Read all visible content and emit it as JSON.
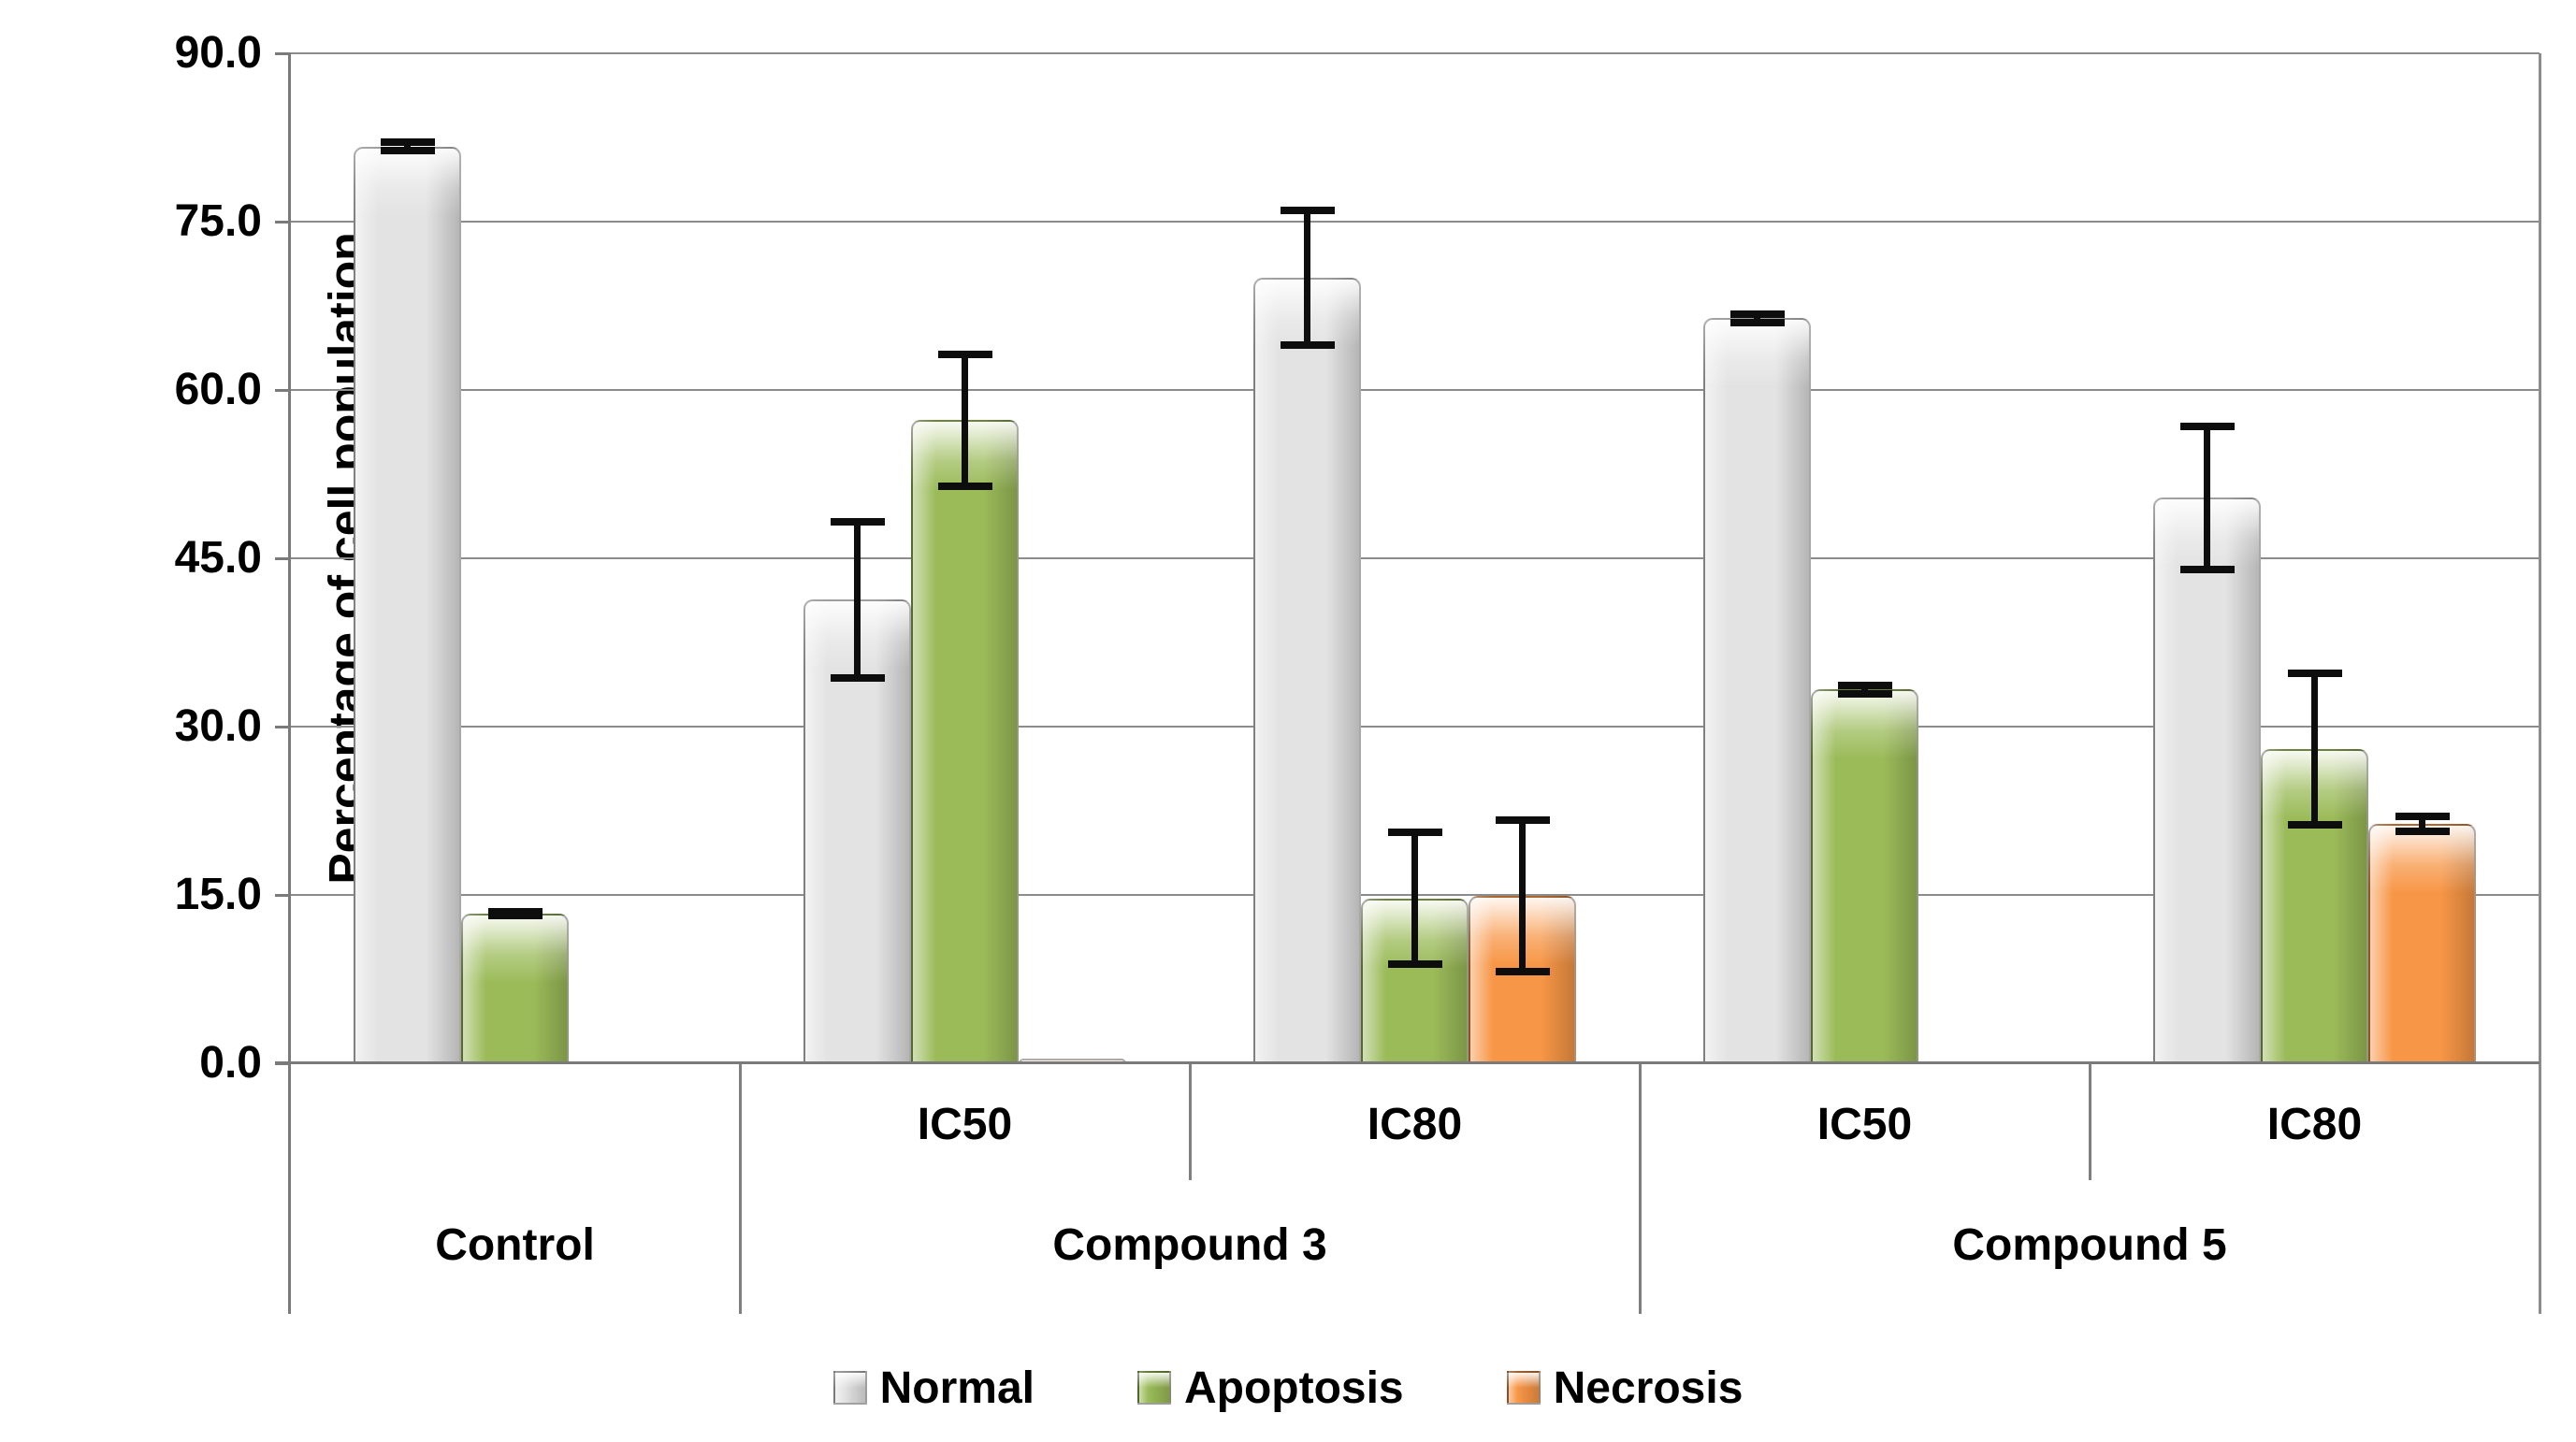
{
  "chart_data": {
    "type": "bar",
    "title": "",
    "ylabel": "Percentage of cell population",
    "xlabel": "",
    "ylim": [
      0,
      90
    ],
    "ytick_step": 15,
    "ytick_labels": [
      "90.0",
      "75.0",
      "60.0",
      "45.0",
      "30.0",
      "15.0",
      "0.0"
    ],
    "grid": true,
    "legend_position": "bottom",
    "series": [
      {
        "name": "Normal",
        "color": "#E3E3E3"
      },
      {
        "name": "Apoptosis",
        "color": "#9BBB59"
      },
      {
        "name": "Necrosis",
        "color": "#F79646"
      }
    ],
    "groups": [
      {
        "label": "Control",
        "subgroups": [
          {
            "label": "",
            "values": [
              {
                "series": "Normal",
                "value": 81.7,
                "error": 0.7
              },
              {
                "series": "Apoptosis",
                "value": 13.3,
                "error": 0.5
              },
              {
                "series": "Necrosis",
                "value": 0,
                "error": 0
              }
            ]
          }
        ]
      },
      {
        "label": "Compound 3",
        "subgroups": [
          {
            "label": "IC50",
            "values": [
              {
                "series": "Normal",
                "value": 41.3,
                "error": 7.3
              },
              {
                "series": "Apoptosis",
                "value": 57.3,
                "error": 6.2
              },
              {
                "series": "Necrosis",
                "value": 0.4,
                "error": 0
              }
            ]
          },
          {
            "label": "IC80",
            "values": [
              {
                "series": "Normal",
                "value": 70.0,
                "error": 6.3
              },
              {
                "series": "Apoptosis",
                "value": 14.7,
                "error": 6.2
              },
              {
                "series": "Necrosis",
                "value": 14.9,
                "error": 7.1
              }
            ]
          }
        ]
      },
      {
        "label": "Compound 5",
        "subgroups": [
          {
            "label": "IC50",
            "values": [
              {
                "series": "Normal",
                "value": 66.4,
                "error": 0.7
              },
              {
                "series": "Apoptosis",
                "value": 33.3,
                "error": 0.7
              },
              {
                "series": "Necrosis",
                "value": 0,
                "error": 0
              }
            ]
          },
          {
            "label": "IC80",
            "values": [
              {
                "series": "Normal",
                "value": 50.4,
                "error": 6.7
              },
              {
                "series": "Apoptosis",
                "value": 28.0,
                "error": 7.1
              },
              {
                "series": "Necrosis",
                "value": 21.3,
                "error": 1.0
              }
            ]
          }
        ]
      }
    ]
  }
}
